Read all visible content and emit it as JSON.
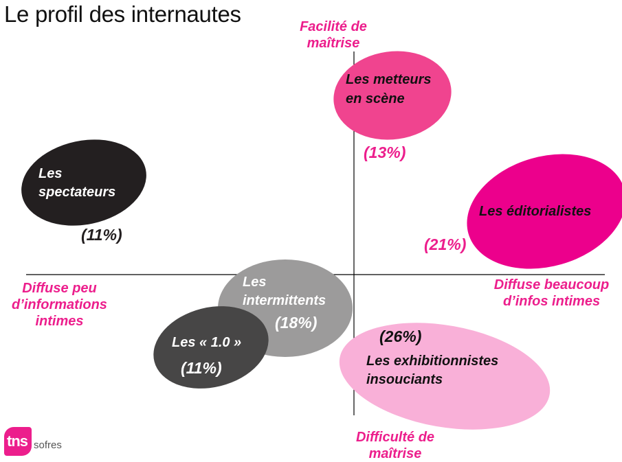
{
  "title": "Le profil des internautes",
  "axes": {
    "top": [
      "Facilité de",
      "maîtrise"
    ],
    "bottom": [
      "Difficulté de",
      "maîtrise"
    ],
    "left": [
      "Diffuse peu",
      "d’informations",
      "intimes"
    ],
    "right": [
      "Diffuse beaucoup",
      "d’infos intimes"
    ]
  },
  "segments": {
    "metteurs": {
      "label": [
        "Les metteurs",
        "en scène"
      ],
      "pct": "(13%)",
      "color": "#f0448f"
    },
    "spectateurs": {
      "label": [
        "Les",
        "spectateurs"
      ],
      "pct": "(11%)",
      "color": "#231f20"
    },
    "editorialistes": {
      "label": [
        "Les éditorialistes"
      ],
      "pct": "(21%)",
      "color": "#ec008c"
    },
    "intermittents": {
      "label": [
        "Les",
        "intermittents"
      ],
      "pct": "(18%)",
      "color": "#9c9b9b"
    },
    "un_zero": {
      "label": [
        "Les « 1.0 »"
      ],
      "pct": "(11%)",
      "color": "#474646"
    },
    "exhibitionnistes": {
      "label": [
        "Les exhibitionnistes",
        "insouciants"
      ],
      "pct": "(26%)",
      "color": "#f9b0d8"
    }
  },
  "colors": {
    "accent": "#ec1e8c",
    "axis": "#000000"
  },
  "logo": {
    "mark": "tns",
    "text": "sofres"
  }
}
